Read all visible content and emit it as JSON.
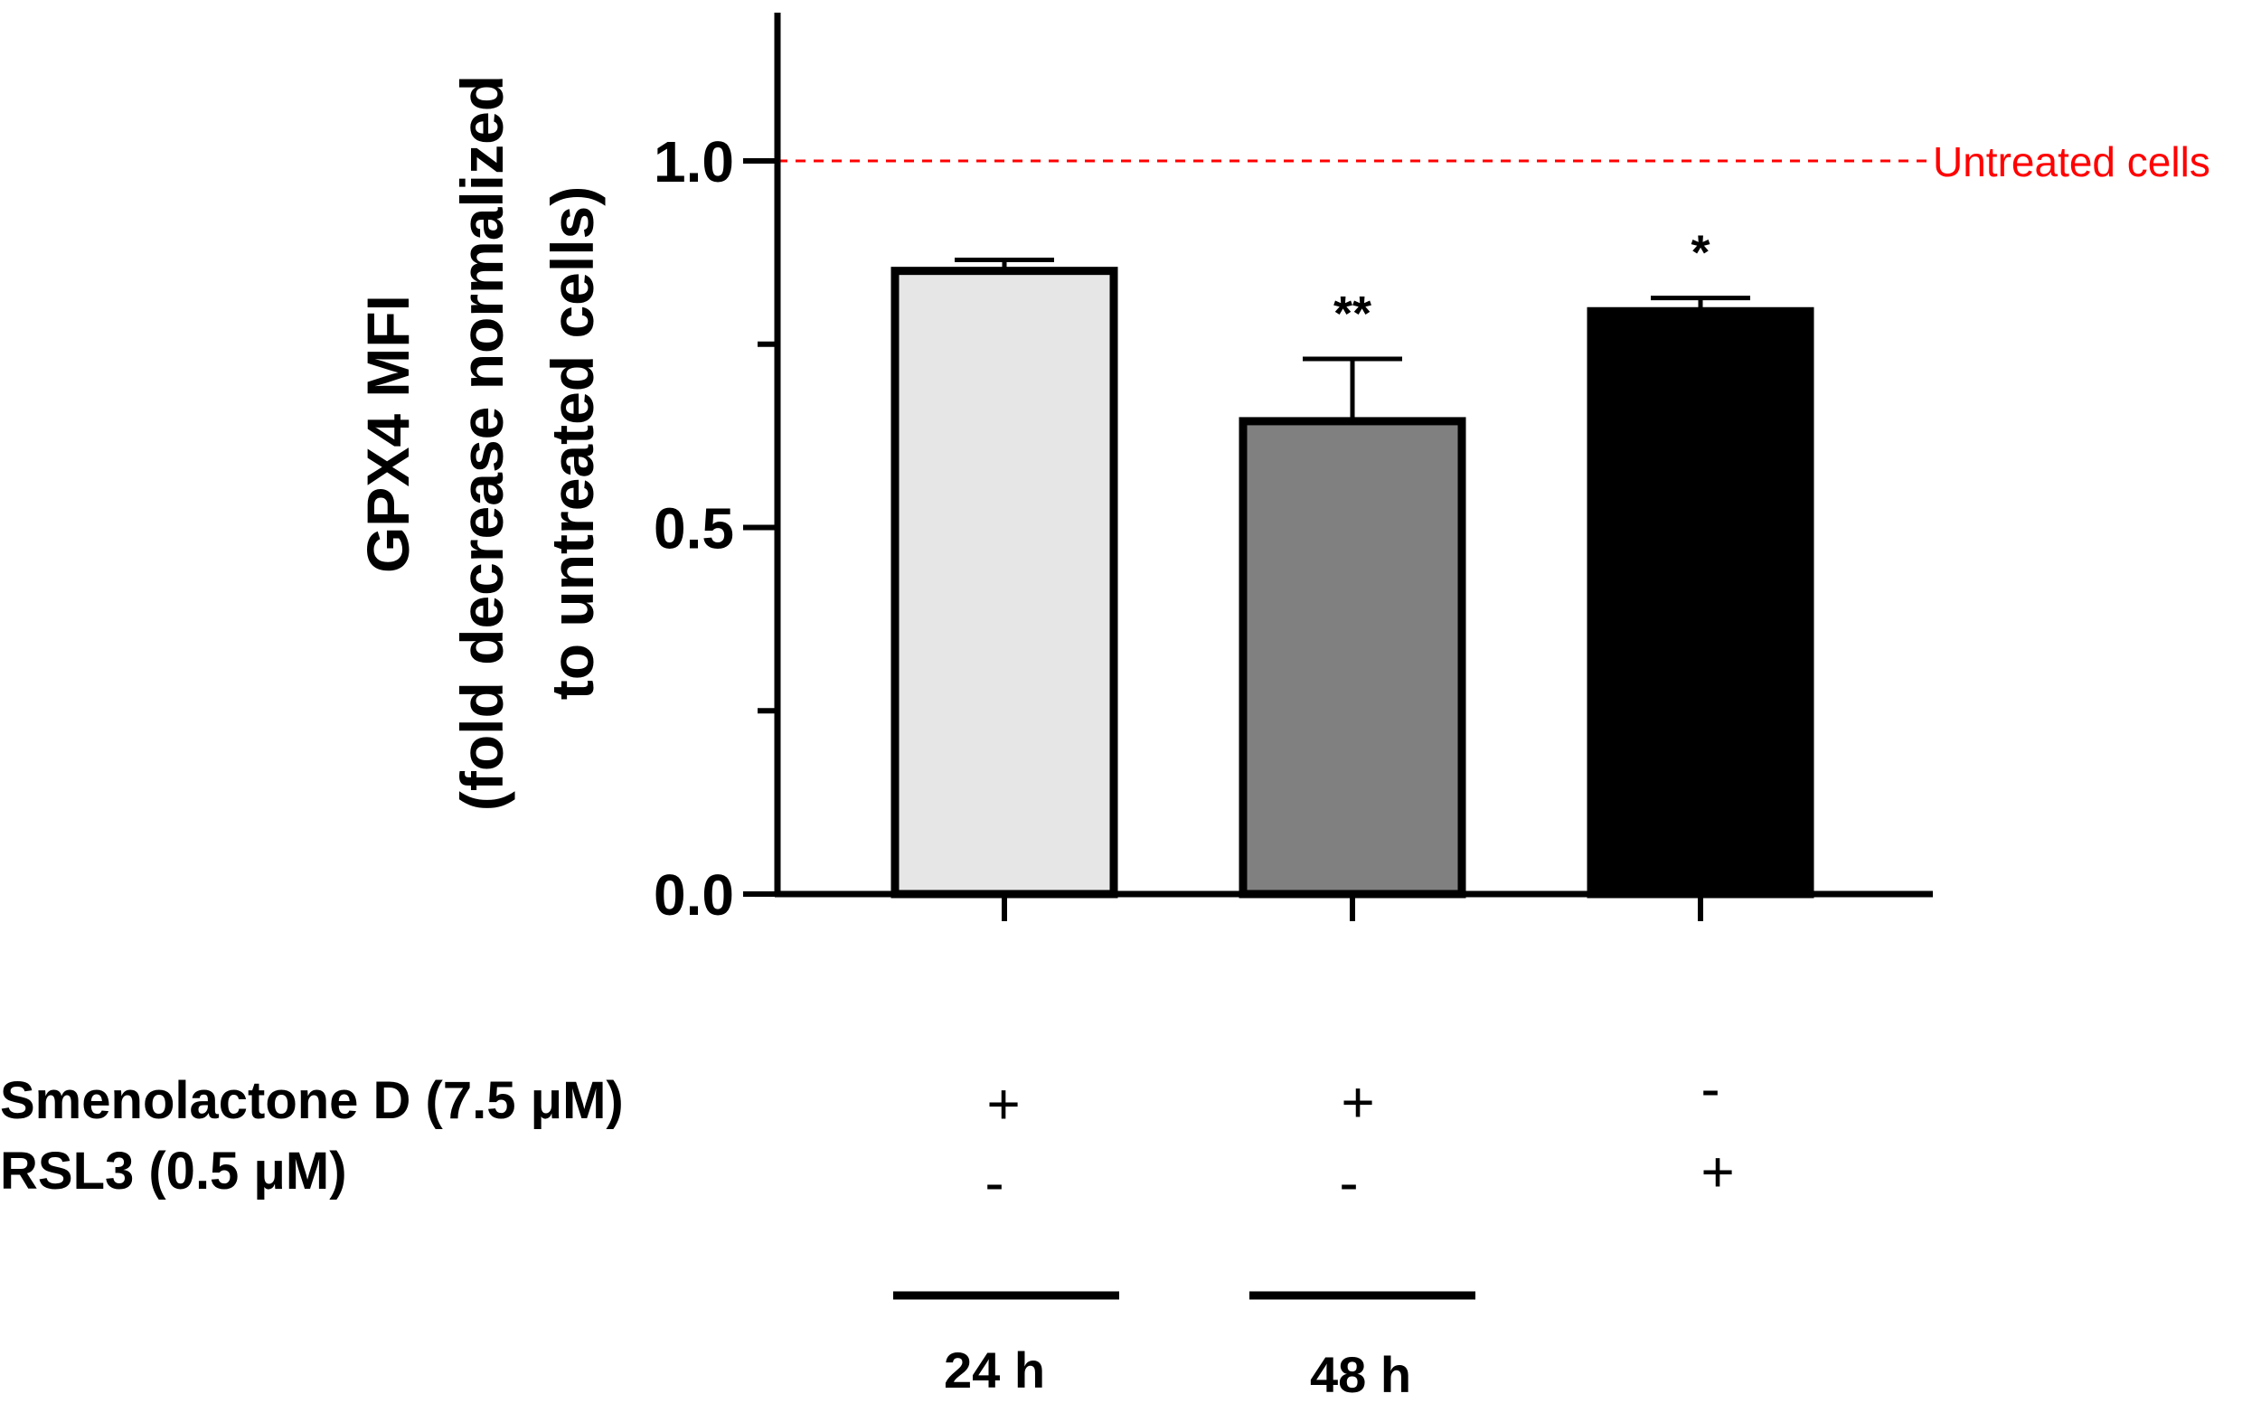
{
  "chart_data": {
    "type": "bar",
    "ylabel_lines": [
      "GPX4 MFI",
      "(fold decrease normalized",
      "to untreated cells)"
    ],
    "ylim": [
      0,
      1.2
    ],
    "yticks": [
      "0.0",
      "0.5",
      "1.0"
    ],
    "ytick_values": [
      0,
      0.5,
      1.0
    ],
    "minor_tick_values": [
      0.25,
      0.75
    ],
    "categories": [
      "Smenolactone D 24 h",
      "Smenolactone D 48 h",
      "RSL3"
    ],
    "values": [
      0.85,
      0.645,
      0.795
    ],
    "errors": [
      0.015,
      0.085,
      0.018
    ],
    "significance": [
      "",
      "**",
      "*"
    ],
    "bar_colors": [
      "#e6e6e6",
      "#808080",
      "#000000"
    ],
    "reference_line": {
      "value": 1.0,
      "label": "Untreated cells",
      "color": "#ff0000"
    },
    "treatments": [
      {
        "label": "Smenolactone D (7.5 μM)",
        "signs": [
          "+",
          "+",
          "-"
        ]
      },
      {
        "label": "RSL3 (0.5 μM)",
        "signs": [
          "-",
          "-",
          "+"
        ]
      }
    ],
    "time_groups": [
      "24 h",
      "48 h"
    ]
  }
}
